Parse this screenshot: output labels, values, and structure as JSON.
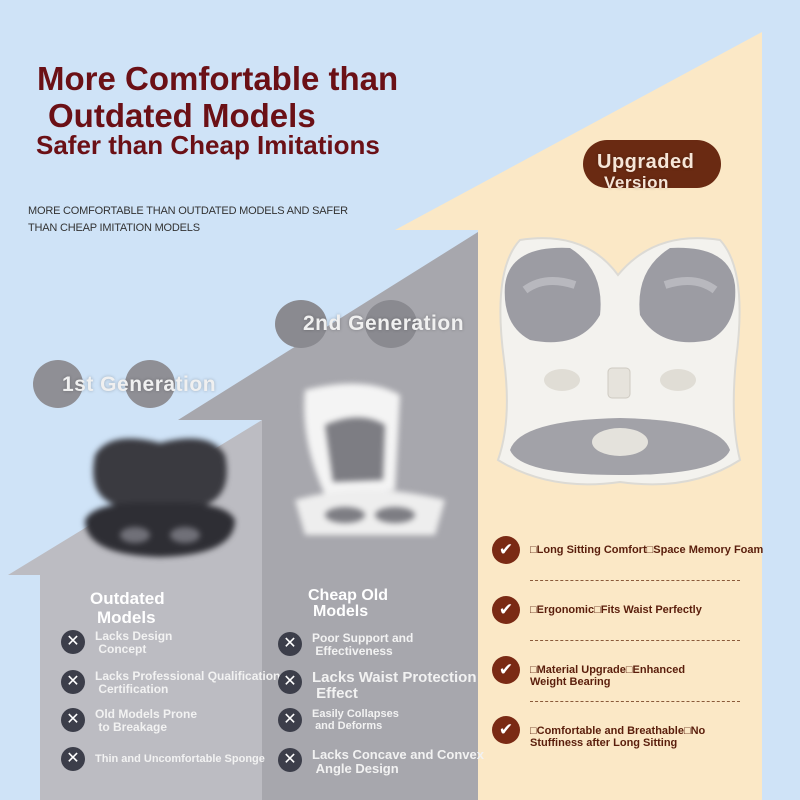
{
  "headline": {
    "line1": "More Comfortable than",
    "line2": "Outdated Models",
    "line3": "Safer than Cheap Imitations"
  },
  "subtitle": {
    "line1": "MORE COMFORTABLE THAN OUTDATED MODELS AND SAFER",
    "line2": "THAN CHEAP IMITATION MODELS"
  },
  "generations": {
    "first": "1st Generation",
    "second": "2nd Generation",
    "upgraded": {
      "line1": "Upgraded",
      "line2": "Version"
    }
  },
  "outdated": {
    "title_line1": "Outdated",
    "title_line2": "Models",
    "items": [
      {
        "line1": "Lacks Design",
        "line2": "Concept"
      },
      {
        "line1": "Lacks Professional Qualification",
        "line2": "Certification"
      },
      {
        "line1": "Old Models Prone",
        "line2": "to Breakage"
      },
      {
        "line1": "Thin and Uncomfortable Sponge",
        "line2": ""
      }
    ]
  },
  "cheap": {
    "title_line1": "Cheap Old",
    "title_line2": "Models",
    "items": [
      {
        "line1": "Poor Support and",
        "line2": "Effectiveness"
      },
      {
        "line1": "Lacks Waist Protection",
        "line2": "Effect"
      },
      {
        "line1": "Easily Collapses",
        "line2": "and Deforms"
      },
      {
        "line1": "Lacks Concave and Convex",
        "line2": "Angle Design"
      }
    ]
  },
  "upgraded_features": [
    {
      "line1": "□Long Sitting Comfort□Space Memory Foam",
      "line2": ""
    },
    {
      "line1": "□Ergonomic□Fits Waist Perfectly",
      "line2": ""
    },
    {
      "line1": "□Material Upgrade□Enhanced",
      "line2": "Weight Bearing"
    },
    {
      "line1": "□Comfortable and Breathable□No",
      "line2": "Stuffiness after Long Sitting"
    }
  ],
  "colors": {
    "background": "#cfe3f7",
    "headline": "#6b1016",
    "check": "#7a2a14",
    "cross": "#3c3e4a",
    "upgraded_panel": "#fbe8c6"
  },
  "icons": {
    "cross": "x-circle-icon",
    "check": "check-circle-icon"
  }
}
